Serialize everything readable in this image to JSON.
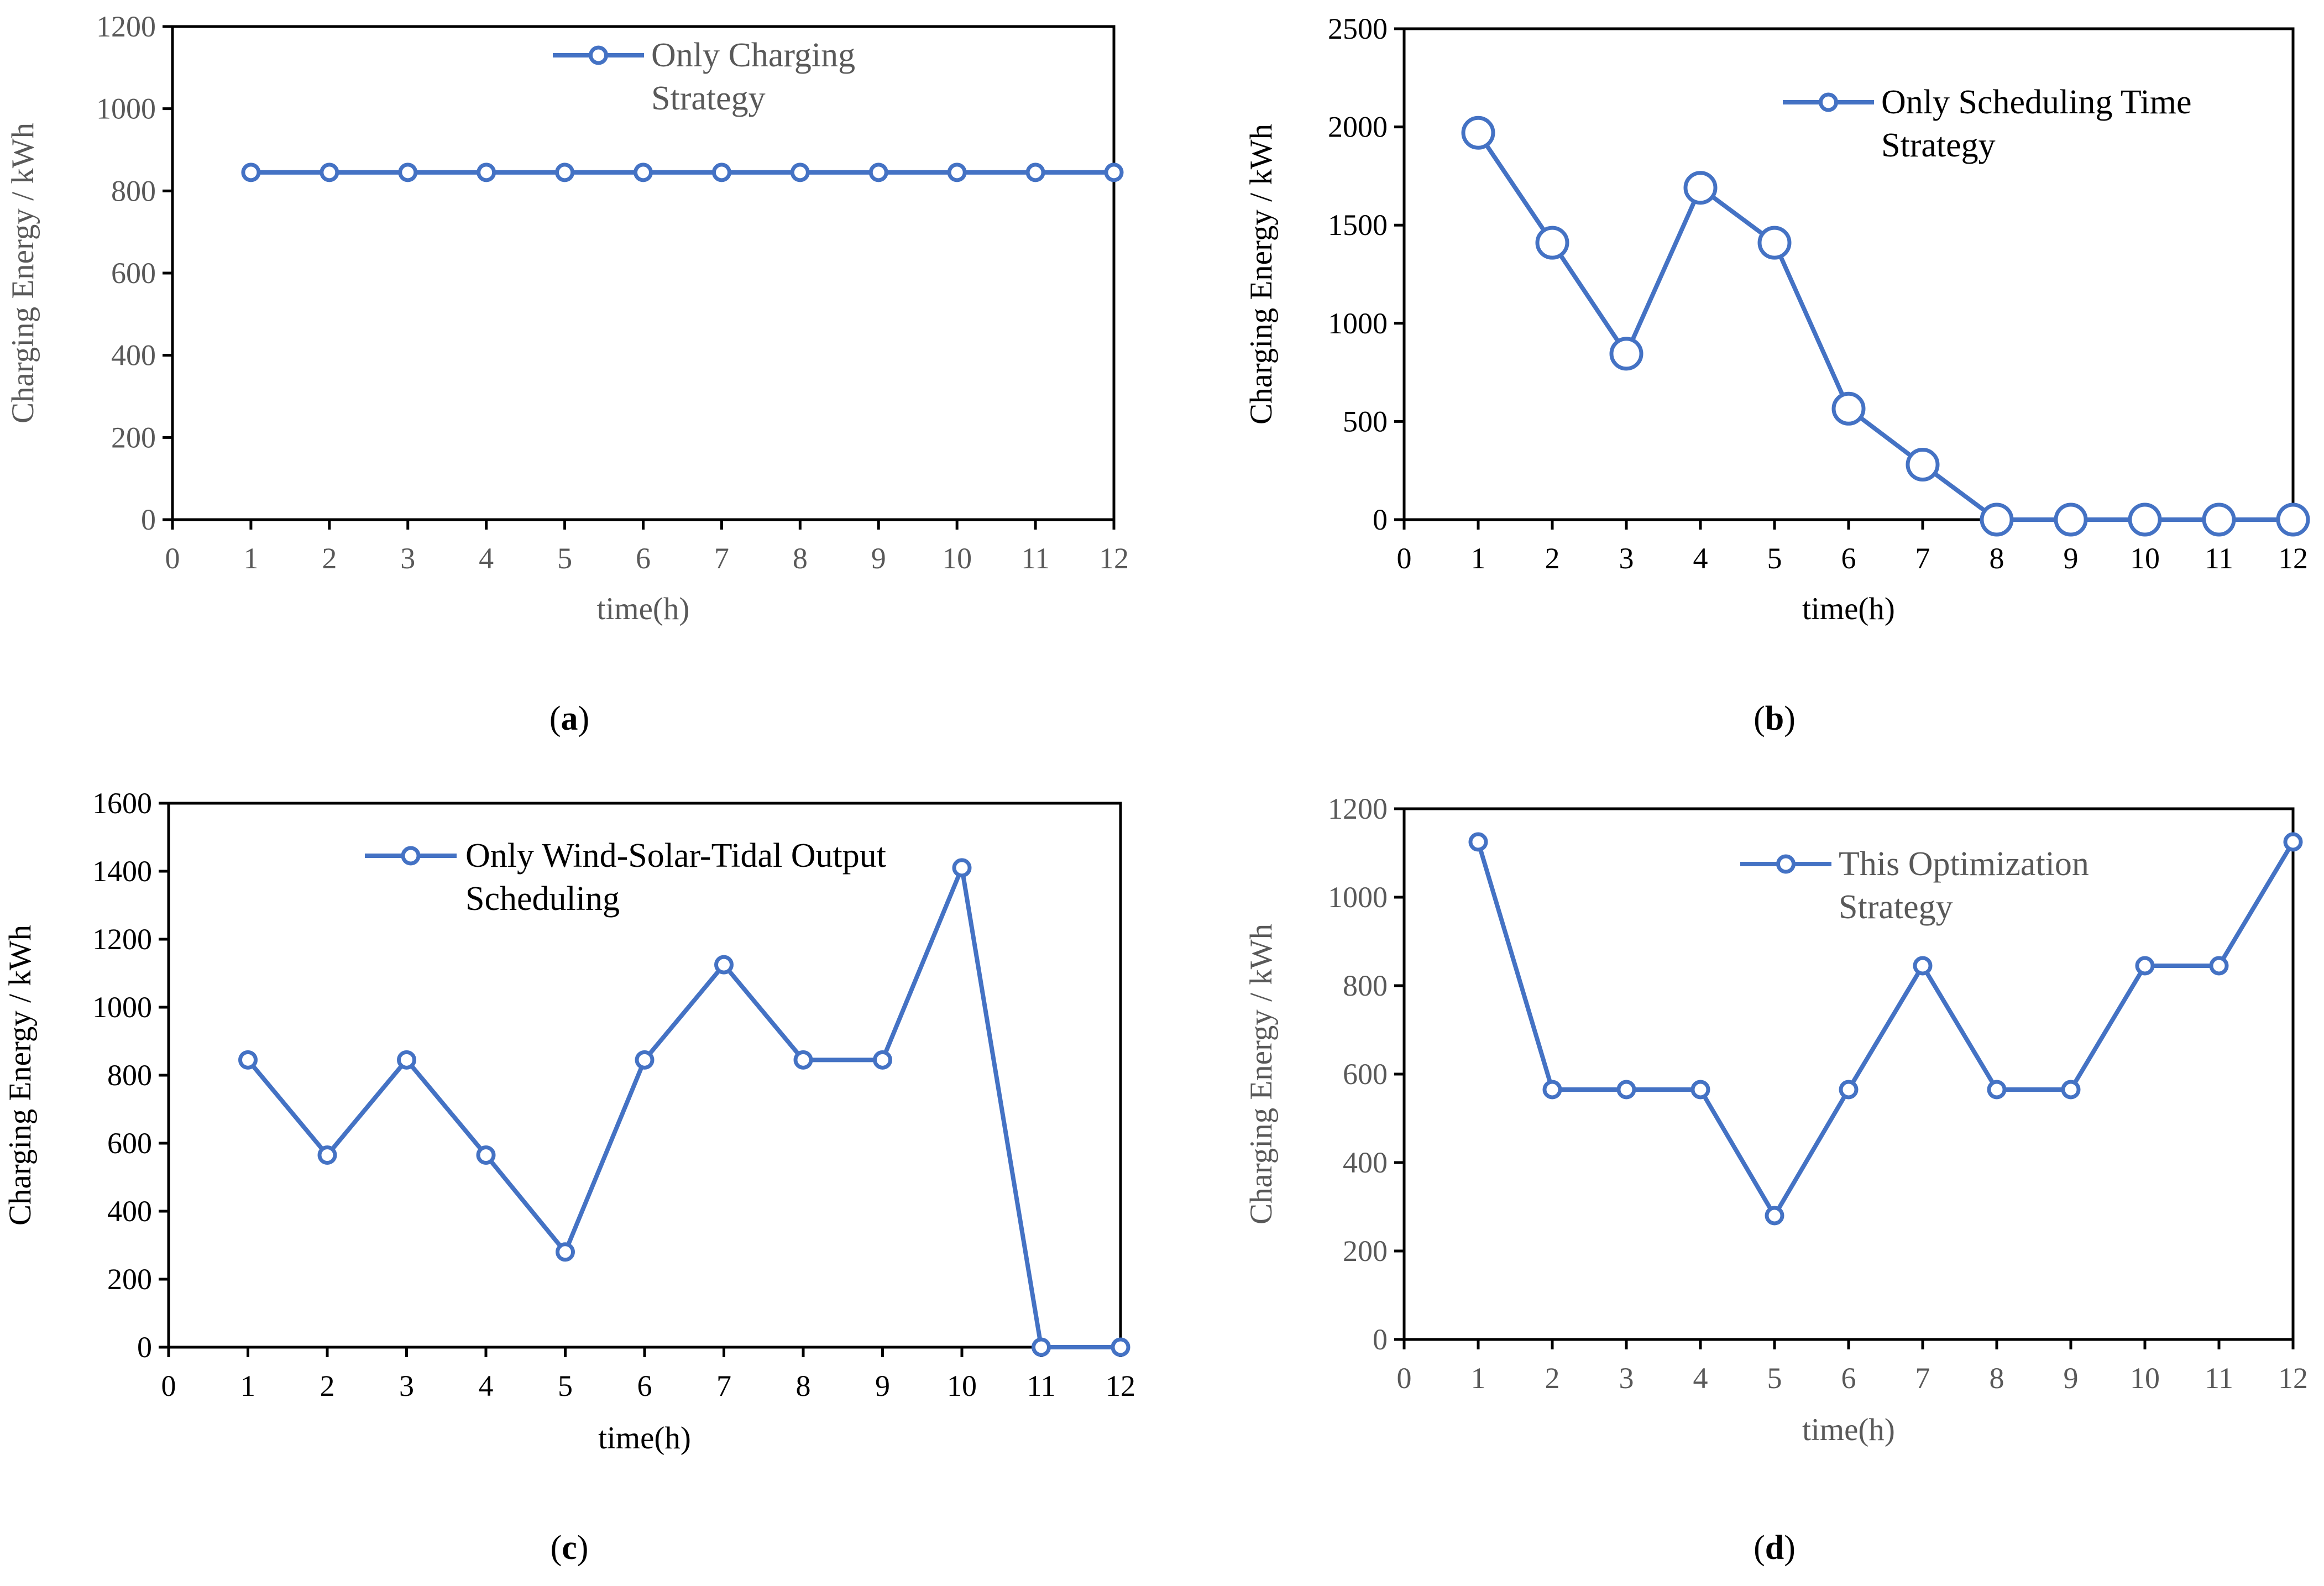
{
  "colors": {
    "series": "#4472C4",
    "axis": "#000000",
    "text_dark": "#000000",
    "text_gray": "#595959"
  },
  "chart_data": [
    {
      "panel": "(a)",
      "caption_letter": "a",
      "type": "line",
      "xlabel": "time(h)",
      "ylabel": "Charging Energy / kWh",
      "xlim": [
        0,
        12
      ],
      "ylim": [
        0,
        1200
      ],
      "xticks": [
        "0",
        "1",
        "2",
        "3",
        "4",
        "5",
        "6",
        "7",
        "8",
        "9",
        "10",
        "11",
        "12"
      ],
      "yticks": [
        "0",
        "200",
        "400",
        "600",
        "800",
        "1000",
        "1200"
      ],
      "marker": "circle",
      "series": [
        {
          "name": "Only Charging Strategy",
          "legend_lines": [
            "Only Charging",
            "Strategy"
          ],
          "x": [
            1,
            2,
            3,
            4,
            5,
            6,
            7,
            8,
            9,
            10,
            11,
            12
          ],
          "y": [
            845,
            845,
            845,
            845,
            845,
            845,
            845,
            845,
            845,
            845,
            845,
            845
          ]
        }
      ]
    },
    {
      "panel": "(b)",
      "caption_letter": "b",
      "type": "line",
      "xlabel": "time(h)",
      "ylabel": "Charging Energy / kWh",
      "xlim": [
        0,
        12
      ],
      "ylim": [
        0,
        2500
      ],
      "xticks": [
        "0",
        "1",
        "2",
        "3",
        "4",
        "5",
        "6",
        "7",
        "8",
        "9",
        "10",
        "11",
        "12"
      ],
      "yticks": [
        "0",
        "500",
        "1000",
        "1500",
        "2000",
        "2500"
      ],
      "marker": "circle-large",
      "series": [
        {
          "name": "Only Scheduling Time Strategy",
          "legend_lines": [
            "Only Scheduling Time",
            "Strategy"
          ],
          "x": [
            1,
            2,
            3,
            4,
            5,
            6,
            7,
            8,
            9,
            10,
            11,
            12
          ],
          "y": [
            1970,
            1410,
            845,
            1690,
            1410,
            565,
            280,
            0,
            0,
            0,
            0,
            0
          ]
        }
      ]
    },
    {
      "panel": "(c)",
      "caption_letter": "c",
      "type": "line",
      "xlabel": "time(h)",
      "ylabel": "Charging Energy / kWh",
      "xlim": [
        0,
        12
      ],
      "ylim": [
        0,
        1600
      ],
      "xticks": [
        "0",
        "1",
        "2",
        "3",
        "4",
        "5",
        "6",
        "7",
        "8",
        "9",
        "10",
        "11",
        "12"
      ],
      "yticks": [
        "0",
        "200",
        "400",
        "600",
        "800",
        "1000",
        "1200",
        "1400",
        "1600"
      ],
      "marker": "circle",
      "series": [
        {
          "name": "Only Wind-Solar-Tidal Output Scheduling",
          "legend_lines": [
            "Only Wind-Solar-Tidal Output",
            "Scheduling"
          ],
          "x": [
            1,
            2,
            3,
            4,
            5,
            6,
            7,
            8,
            9,
            10,
            11,
            12
          ],
          "y": [
            845,
            565,
            845,
            565,
            280,
            845,
            1125,
            845,
            845,
            1410,
            0,
            0
          ]
        }
      ]
    },
    {
      "panel": "(d)",
      "caption_letter": "d",
      "type": "line",
      "xlabel": "time(h)",
      "ylabel": "Charging Energy / kWh",
      "xlim": [
        0,
        12
      ],
      "ylim": [
        0,
        1200
      ],
      "xticks": [
        "0",
        "1",
        "2",
        "3",
        "4",
        "5",
        "6",
        "7",
        "8",
        "9",
        "10",
        "11",
        "12"
      ],
      "yticks": [
        "0",
        "200",
        "400",
        "600",
        "800",
        "1000",
        "1200"
      ],
      "marker": "circle",
      "series": [
        {
          "name": "This Optimization Strategy",
          "legend_lines": [
            "This Optimization",
            "Strategy"
          ],
          "x": [
            1,
            2,
            3,
            4,
            5,
            6,
            7,
            8,
            9,
            10,
            11,
            12
          ],
          "y": [
            1125,
            565,
            565,
            565,
            280,
            565,
            845,
            565,
            565,
            845,
            845,
            1125
          ]
        }
      ]
    }
  ]
}
